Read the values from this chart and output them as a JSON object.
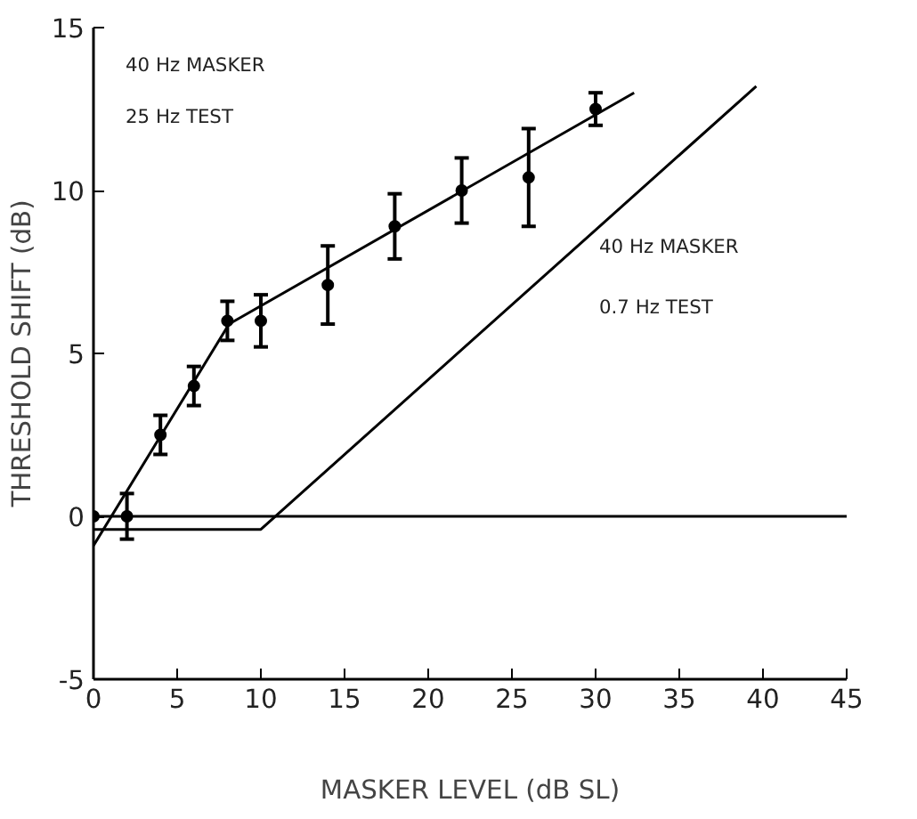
{
  "chart_data": {
    "type": "scatter",
    "xlabel": "MASKER LEVEL (dB SL)",
    "ylabel": "THRESHOLD SHIFT (dB)",
    "xlim": [
      0,
      45
    ],
    "ylim": [
      -5,
      15
    ],
    "xticks": [
      0,
      5,
      10,
      15,
      20,
      25,
      30,
      35,
      40,
      45
    ],
    "yticks": [
      -5,
      0,
      5,
      10,
      15
    ],
    "grid": false,
    "series": [
      {
        "color": "#000000",
        "marker": "circle",
        "x": [
          0,
          2,
          4,
          6,
          8,
          10,
          14,
          18,
          22,
          26,
          30
        ],
        "values": [
          0,
          0,
          2.5,
          4.0,
          6.0,
          6.0,
          7.1,
          8.9,
          10.0,
          10.4,
          12.5
        ],
        "errors": [
          null,
          0.7,
          0.6,
          0.6,
          0.6,
          0.8,
          1.2,
          1.0,
          1.0,
          1.5,
          0.5
        ]
      },
      {
        "type": "line",
        "color": "#000000",
        "marker": "none",
        "x": [
          0,
          8.1,
          32.3
        ],
        "values": [
          -0.9,
          5.9,
          13.0
        ]
      },
      {
        "type": "line",
        "color": "#000000",
        "marker": "none",
        "x": [
          0,
          10,
          39.6
        ],
        "values": [
          -0.4,
          -0.4,
          13.2
        ]
      }
    ],
    "ref_lines": [
      {
        "axis": "y",
        "value": 0,
        "color": "#000000"
      }
    ],
    "annotations": [
      "40 Hz MASKER",
      "25 Hz TEST",
      "40 Hz MASKER",
      "0.7 Hz TEST"
    ]
  }
}
